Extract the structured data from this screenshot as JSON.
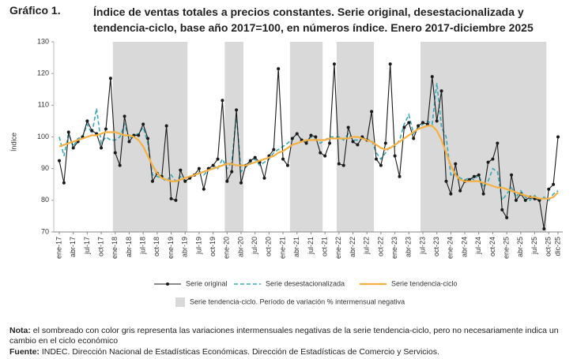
{
  "chart_data": {
    "type": "line",
    "label": "Gráfico 1.",
    "title": "Índice de ventas totales a precios constantes. Serie original, desestacionalizada y tendencia-ciclo, base año 2017=100, en números índice. Enero 2017-diciembre 2025",
    "y_label": "Índice",
    "categories": [
      "ene-17",
      null,
      null,
      "abr-17",
      null,
      null,
      "jul-17",
      null,
      null,
      "oct-17",
      null,
      null,
      "ene-18",
      null,
      null,
      "abr-18",
      null,
      null,
      "jul-18",
      null,
      null,
      "oct-18",
      null,
      null,
      "ene-19",
      null,
      null,
      "abr-19",
      null,
      null,
      "jul-19",
      null,
      null,
      "oct-19",
      null,
      null,
      "ene-20",
      null,
      null,
      "abr-20",
      null,
      null,
      "jul-20",
      null,
      null,
      "oct-20",
      null,
      null,
      "ene-21",
      null,
      null,
      "abr-21",
      null,
      null,
      "jul-21",
      null,
      null,
      "oct-21",
      null,
      null,
      "ene-22",
      null,
      null,
      "abr-22",
      null,
      null,
      "jul-22",
      null,
      null,
      "oct-22",
      null,
      null,
      "ene-23",
      null,
      null,
      "abr-23",
      null,
      null,
      "jul-23",
      null,
      null,
      "oct-23",
      null,
      null,
      "ene-24",
      null,
      null,
      "abr-24",
      null,
      null,
      "jul-24",
      null,
      null,
      "oct-24",
      null,
      null,
      "ene-25",
      null,
      null,
      "abr-25",
      null,
      null,
      "jul-25",
      null,
      null,
      "oct-25",
      null,
      "dic-25"
    ],
    "series": [
      {
        "name": "Serie original",
        "color": "#1a1a1a",
        "style": "markers",
        "values": [
          92.5,
          85.5,
          101.5,
          96.5,
          98.5,
          100,
          105,
          102,
          101,
          96.5,
          102.5,
          118.5,
          95,
          91,
          106.5,
          98.5,
          100.5,
          100.5,
          104,
          99.5,
          86,
          88.5,
          87.5,
          103.5,
          80.5,
          80,
          89.5,
          86,
          87,
          88,
          90,
          83.5,
          90,
          91,
          93,
          111.5,
          86,
          89,
          108.5,
          85.5,
          91,
          92.5,
          93.5,
          92,
          87,
          94,
          96,
          121.5,
          93,
          91,
          99.5,
          101,
          99,
          98,
          100.5,
          100,
          95,
          94,
          98,
          123,
          91.5,
          91,
          103,
          98.5,
          97.5,
          100,
          99,
          108,
          93,
          91,
          98,
          123,
          94,
          87.5,
          103,
          104.5,
          99.5,
          103.5,
          104.5,
          104,
          119,
          105,
          114.5,
          86,
          82,
          91.5,
          83,
          86,
          86.5,
          87.5,
          88,
          82,
          92,
          93,
          98,
          77,
          74.5,
          88,
          80,
          82,
          80,
          81,
          80.5,
          80,
          71,
          83.5,
          85,
          100
        ]
      },
      {
        "name": "Serie desestacionalizada",
        "color": "#3aa8b5",
        "style": "dashed",
        "values": [
          100,
          94,
          101,
          97,
          99.5,
          100,
          104,
          101,
          109,
          98,
          100,
          99,
          99,
          100,
          104,
          99.5,
          100.5,
          101,
          103,
          98,
          88,
          87.5,
          87,
          86,
          88,
          86,
          87.5,
          86,
          87,
          88,
          89,
          88,
          89.5,
          91,
          90,
          93,
          90,
          92,
          107,
          89,
          90.5,
          92,
          93,
          91,
          92,
          93,
          95,
          96,
          97,
          98,
          99.5,
          101,
          99,
          98.5,
          100,
          99,
          98,
          99,
          100,
          100,
          100,
          99,
          101,
          99,
          99,
          99.5,
          99,
          99,
          95,
          93,
          95,
          97,
          97,
          99,
          104,
          107,
          101,
          103,
          104,
          105,
          104,
          117,
          103,
          100,
          88,
          88.5,
          87,
          86.5,
          87,
          86.5,
          88,
          84,
          86,
          90,
          89,
          80,
          82,
          84,
          81,
          83,
          81,
          80,
          81.5,
          80,
          81,
          80,
          82,
          83
        ]
      },
      {
        "name": "Serie tendencia-ciclo",
        "color": "#f5b041",
        "style": "thick",
        "values": [
          97,
          97.5,
          98,
          98.5,
          99,
          99.5,
          100,
          100.5,
          100.5,
          101,
          101.5,
          101.5,
          101.5,
          101,
          100.5,
          100.5,
          100,
          99,
          97,
          94,
          91,
          88.5,
          87,
          86.5,
          86,
          86,
          86.5,
          87,
          87.5,
          88,
          88.5,
          89,
          89.5,
          90,
          90.5,
          91,
          91.5,
          91.5,
          91,
          91,
          91,
          91.5,
          92,
          92.5,
          93,
          93.5,
          94,
          95,
          95.5,
          96.5,
          97.5,
          98,
          98.5,
          99,
          99,
          99,
          99,
          99,
          99.5,
          99.5,
          99.5,
          99.5,
          99.5,
          100,
          100,
          99.5,
          99,
          98.5,
          97.5,
          96.5,
          96,
          96.5,
          97.5,
          98.5,
          99.5,
          100.5,
          101.5,
          102.5,
          103,
          103.5,
          103.5,
          102,
          99,
          95,
          91,
          88,
          86.5,
          86,
          86,
          86,
          86,
          85.5,
          85,
          84.5,
          84,
          84,
          83.5,
          83,
          82.5,
          82,
          81.5,
          81,
          81,
          80.5,
          80.5,
          80.5,
          81,
          82.5
        ]
      }
    ],
    "shading": {
      "name": "Serie tendencia-ciclo. Período de variación % intermensual negativa",
      "color": "#d9d9d9",
      "periods": [
        [
          12,
          27
        ],
        [
          36,
          39
        ],
        [
          50,
          56
        ],
        [
          60,
          67
        ],
        [
          78,
          104
        ]
      ]
    },
    "ylim": [
      70,
      130
    ],
    "yticks": [
      70,
      80,
      90,
      100,
      110,
      120,
      130
    ],
    "note_label": "Nota:",
    "note": "el sombreado con color gris representa las variaciones intermensuales negativas de la serie tendencia-ciclo, pero no necesariamente indica un cambio en el ciclo económico",
    "source_label": "Fuente:",
    "source": "INDEC. Dirección Nacional de Estadísticas Económicas. Dirección de Estadísticas de Comercio y Servicios."
  }
}
